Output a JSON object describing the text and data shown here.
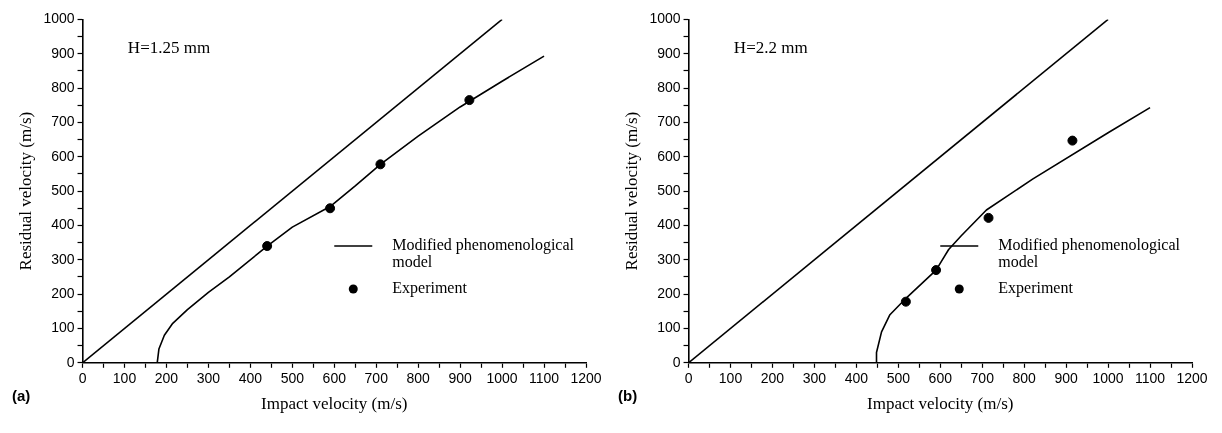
{
  "chart_data": [
    {
      "type": "line",
      "annotations": [
        "H=1.25 mm",
        "(a)"
      ],
      "xlabel": "Impact velocity (m/s)",
      "ylabel": "Residual velocity (m/s)",
      "xlim": [
        0,
        1200
      ],
      "ylim": [
        0,
        1000
      ],
      "xticks": [
        0,
        {
          "value": 50,
          "label": null
        },
        100,
        {
          "value": 150,
          "label": null
        },
        200,
        {
          "value": 250,
          "label": null
        },
        300,
        {
          "value": 350,
          "label": null
        },
        400,
        {
          "value": 450,
          "label": null
        },
        500,
        {
          "value": 550,
          "label": null
        },
        600,
        {
          "value": 650,
          "label": null
        },
        700,
        {
          "value": 750,
          "label": null
        },
        800,
        {
          "value": 850,
          "label": null
        },
        900,
        {
          "value": 950,
          "label": null
        },
        1000,
        {
          "value": 1050,
          "label": null
        },
        1100,
        {
          "value": 1150,
          "label": null
        },
        1200
      ],
      "yticks": [
        0,
        {
          "value": 50,
          "label": null
        },
        100,
        {
          "value": 150,
          "label": null
        },
        200,
        {
          "value": 250,
          "label": null
        },
        300,
        {
          "value": 350,
          "label": null
        },
        400,
        {
          "value": 450,
          "label": null
        },
        500,
        {
          "value": 550,
          "label": null
        },
        600,
        {
          "value": 650,
          "label": null
        },
        700,
        {
          "value": 750,
          "label": null
        },
        800,
        {
          "value": 850,
          "label": null
        },
        900,
        {
          "value": 950,
          "label": null
        },
        1000
      ],
      "grid": false,
      "legend": "bottom right",
      "series": [
        {
          "color": "#000000",
          "marker": "none",
          "x": [
            0,
            1000
          ],
          "values": [
            0,
            1000
          ]
        },
        {
          "name": "Modified phenomenological model",
          "color": "#000000",
          "marker": "none",
          "x": [
            178,
            182,
            195,
            215,
            250,
            300,
            350,
            440,
            500,
            590,
            650,
            710,
            800,
            900,
            1000,
            1100
          ],
          "values": [
            0,
            40,
            80,
            115,
            155,
            205,
            250,
            340,
            395,
            455,
            515,
            578,
            660,
            745,
            820,
            893
          ]
        },
        {
          "name": "Experiment",
          "type": "scatter",
          "color": "#000000",
          "marker": "circle",
          "x": [
            440,
            590,
            710,
            922
          ],
          "values": [
            340,
            450,
            578,
            765
          ]
        }
      ]
    },
    {
      "type": "line",
      "annotations": [
        "H=2.2 mm",
        "(b)"
      ],
      "xlabel": "Impact velocity (m/s)",
      "ylabel": "Residual velocity (m/s)",
      "xlim": [
        0,
        1200
      ],
      "ylim": [
        0,
        1000
      ],
      "xticks": [
        0,
        {
          "value": 50,
          "label": null
        },
        100,
        {
          "value": 150,
          "label": null
        },
        200,
        {
          "value": 250,
          "label": null
        },
        300,
        {
          "value": 350,
          "label": null
        },
        400,
        {
          "value": 450,
          "label": null
        },
        500,
        {
          "value": 550,
          "label": null
        },
        600,
        {
          "value": 650,
          "label": null
        },
        700,
        {
          "value": 750,
          "label": null
        },
        800,
        {
          "value": 850,
          "label": null
        },
        900,
        {
          "value": 950,
          "label": null
        },
        1000,
        {
          "value": 1050,
          "label": null
        },
        1100,
        {
          "value": 1150,
          "label": null
        },
        1200
      ],
      "yticks": [
        0,
        {
          "value": 50,
          "label": null
        },
        100,
        {
          "value": 150,
          "label": null
        },
        200,
        {
          "value": 250,
          "label": null
        },
        300,
        {
          "value": 350,
          "label": null
        },
        400,
        {
          "value": 450,
          "label": null
        },
        500,
        {
          "value": 550,
          "label": null
        },
        600,
        {
          "value": 650,
          "label": null
        },
        700,
        {
          "value": 750,
          "label": null
        },
        800,
        {
          "value": 850,
          "label": null
        },
        900,
        {
          "value": 950,
          "label": null
        },
        1000
      ],
      "grid": false,
      "legend": "bottom right",
      "series": [
        {
          "color": "#000000",
          "marker": "none",
          "x": [
            0,
            1000
          ],
          "values": [
            0,
            1000
          ]
        },
        {
          "name": "Modified phenomenological model",
          "color": "#000000",
          "marker": "none",
          "x": [
            447,
            448,
            460,
            480,
            520,
            590,
            620,
            650,
            710,
            820,
            1000,
            1100
          ],
          "values": [
            0,
            30,
            90,
            140,
            190,
            270,
            330,
            370,
            445,
            535,
            670,
            743
          ]
        },
        {
          "name": "Experiment",
          "type": "scatter",
          "color": "#000000",
          "marker": "circle",
          "x": [
            518,
            590,
            715,
            915
          ],
          "values": [
            178,
            270,
            422,
            647
          ]
        }
      ]
    }
  ]
}
